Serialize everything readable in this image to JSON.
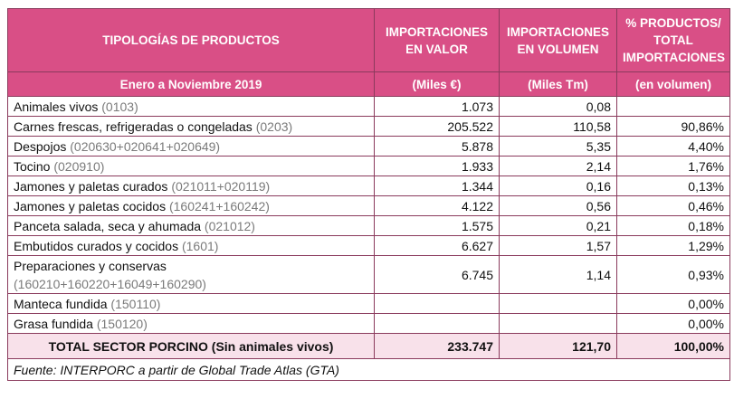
{
  "header": {
    "col1": "TIPOLOGÍAS DE PRODUCTOS",
    "col2_l1": "IMPORTACIONES",
    "col2_l2": "EN VALOR",
    "col3_l1": "IMPORTACIONES",
    "col3_l2": "EN VOLUMEN",
    "col4_l1": "% PRODUCTOS/",
    "col4_l2": "TOTAL",
    "col4_l3": "IMPORTACIONES",
    "period": "Enero a Noviembre 2019",
    "unit_value": "(Miles  €)",
    "unit_volume": "(Miles Tm)",
    "unit_pct": "(en volumen)"
  },
  "rows": [
    {
      "name": "Animales vivos",
      "code": "(0103)",
      "valor": "1.073",
      "volumen": "0,08",
      "pct": ""
    },
    {
      "name": "Carnes frescas, refrigeradas o congeladas",
      "code": "(0203)",
      "valor": "205.522",
      "volumen": "110,58",
      "pct": "90,86%"
    },
    {
      "name": "Despojos",
      "code": "(020630+020641+020649)",
      "valor": "5.878",
      "volumen": "5,35",
      "pct": "4,40%"
    },
    {
      "name": "Tocino",
      "code": "(020910)",
      "valor": "1.933",
      "volumen": "2,14",
      "pct": "1,76%"
    },
    {
      "name": "Jamones y paletas curados",
      "code": "(021011+020119)",
      "valor": "1.344",
      "volumen": "0,16",
      "pct": "0,13%"
    },
    {
      "name": "Jamones y paletas cocidos",
      "code": "(160241+160242)",
      "valor": "4.122",
      "volumen": "0,56",
      "pct": "0,46%"
    },
    {
      "name": "Panceta salada, seca y ahumada",
      "code": "(021012)",
      "valor": "1.575",
      "volumen": "0,21",
      "pct": "0,18%"
    },
    {
      "name": "Embutidos curados y cocidos",
      "code": "(1601)",
      "valor": "6.627",
      "volumen": "1,57",
      "pct": "1,29%"
    },
    {
      "name": "Preparaciones y conservas",
      "code": "(160210+160220+16049+160290)",
      "valor": "6.745",
      "volumen": "1,14",
      "pct": "0,93%"
    },
    {
      "name": "Manteca fundida",
      "code": "(150110)",
      "valor": "",
      "volumen": "",
      "pct": "0,00%"
    },
    {
      "name": "Grasa fundida",
      "code": "(150120)",
      "valor": "",
      "volumen": "",
      "pct": "0,00%"
    }
  ],
  "total": {
    "label": "TOTAL SECTOR PORCINO (Sin animales vivos)",
    "valor": "233.747",
    "volumen": "121,70",
    "pct": "100,00%"
  },
  "source": "Fuente: INTERPORC a partir de Global Trade Atlas (GTA)"
}
